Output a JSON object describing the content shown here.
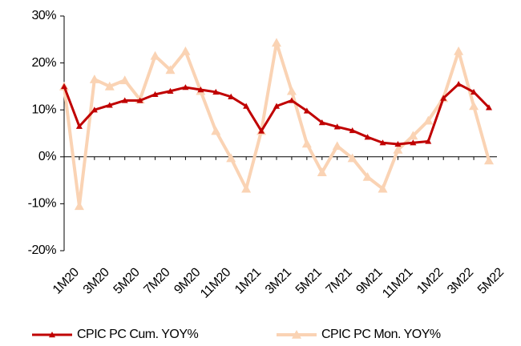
{
  "chart_data": {
    "type": "line",
    "categories": [
      "1M20",
      null,
      "3M20",
      null,
      "5M20",
      null,
      "7M20",
      null,
      "9M20",
      null,
      "11M20",
      null,
      "1M21",
      null,
      "3M21",
      null,
      "5M21",
      null,
      "7M21",
      null,
      "9M21",
      null,
      "11M21",
      null,
      "1M22",
      null,
      "3M22",
      null,
      "5M22"
    ],
    "series": [
      {
        "name": "CPIC PC Cum. YOY%",
        "color": "#c00000",
        "values": [
          15,
          6.5,
          10,
          11,
          12,
          12,
          13.3,
          14,
          14.8,
          14.3,
          13.8,
          12.8,
          10.8,
          5.5,
          10.8,
          12,
          9.8,
          7.3,
          6.4,
          5.6,
          4.2,
          3,
          2.7,
          3,
          3.3,
          12.5,
          15.5,
          13.8,
          10.5
        ]
      },
      {
        "name": "CPIC PC Mon. YOY%",
        "color": "#fad3b4",
        "values": [
          15,
          -10.5,
          16.5,
          15,
          16.3,
          12.2,
          21.5,
          18.5,
          22.5,
          14,
          5.5,
          -0.3,
          -6.8,
          5.5,
          24.3,
          14,
          2.8,
          -3.3,
          2.3,
          -0.3,
          -4.3,
          -6.8,
          1.5,
          4.5,
          7.7,
          12.5,
          22.5,
          10.8,
          -0.8
        ]
      }
    ],
    "ylim": [
      -20,
      30
    ],
    "yticks": [
      {
        "value": -20,
        "label": "-20%"
      },
      {
        "value": -10,
        "label": "-10%"
      },
      {
        "value": 0,
        "label": "0%"
      },
      {
        "value": 10,
        "label": "10%"
      },
      {
        "value": 20,
        "label": "20%"
      },
      {
        "value": 30,
        "label": "30%"
      }
    ],
    "legend": "bottom"
  }
}
